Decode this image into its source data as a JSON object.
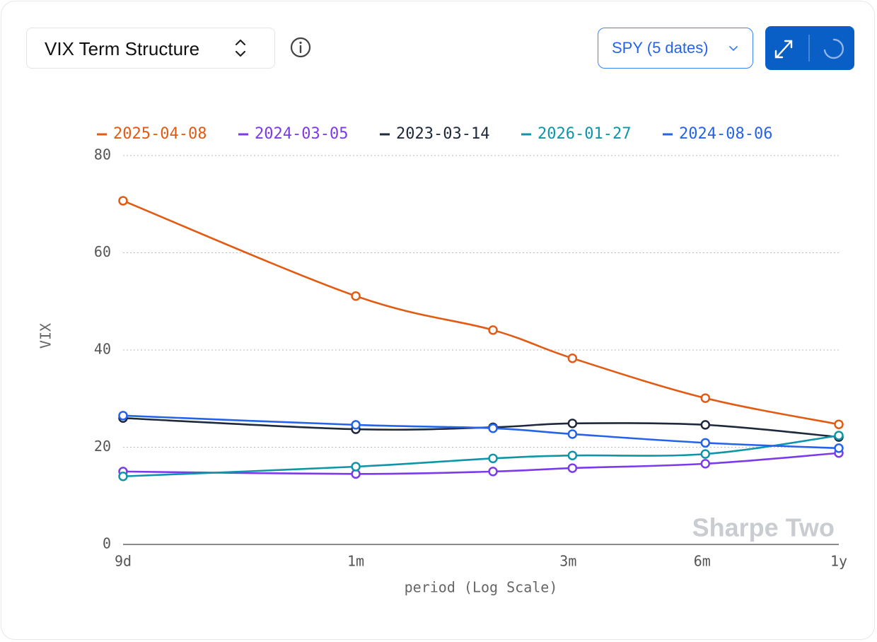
{
  "header": {
    "selector": "VIX Term Structure",
    "symbol": "SPY (5 dates)"
  },
  "chart_data": {
    "type": "line",
    "y_label": "VIX",
    "x_label": "period (Log Scale)",
    "watermark": "Sharpe Two",
    "x": [
      9,
      30,
      61,
      92,
      183,
      365
    ],
    "xscale": "log",
    "xlim": [
      9,
      365
    ],
    "xticks": [
      {
        "value": 9,
        "label": "9d"
      },
      {
        "value": 30,
        "label": "1m"
      },
      {
        "value": 90,
        "label": "3m"
      },
      {
        "value": 180,
        "label": "6m"
      },
      {
        "value": 365,
        "label": "1y"
      }
    ],
    "ylim": [
      0,
      80
    ],
    "yticks": [
      0,
      20,
      40,
      60,
      80
    ],
    "grid": true,
    "series": [
      {
        "name": "2025-04-08",
        "color": "#e35a12",
        "values": [
          70.7,
          51.1,
          44.1,
          38.3,
          30.1,
          24.7
        ]
      },
      {
        "name": "2024-03-05",
        "color": "#7c3aed",
        "values": [
          15.0,
          14.5,
          15.0,
          15.7,
          16.6,
          18.8
        ]
      },
      {
        "name": "2023-03-14",
        "color": "#1e293b",
        "values": [
          26.0,
          23.7,
          24.1,
          24.9,
          24.6,
          22.1
        ]
      },
      {
        "name": "2026-01-27",
        "color": "#0e95a8",
        "values": [
          14.0,
          16.0,
          17.7,
          18.3,
          18.6,
          22.4
        ]
      },
      {
        "name": "2024-08-06",
        "color": "#2563eb",
        "values": [
          26.5,
          24.6,
          23.9,
          22.7,
          20.9,
          19.8
        ]
      }
    ]
  }
}
